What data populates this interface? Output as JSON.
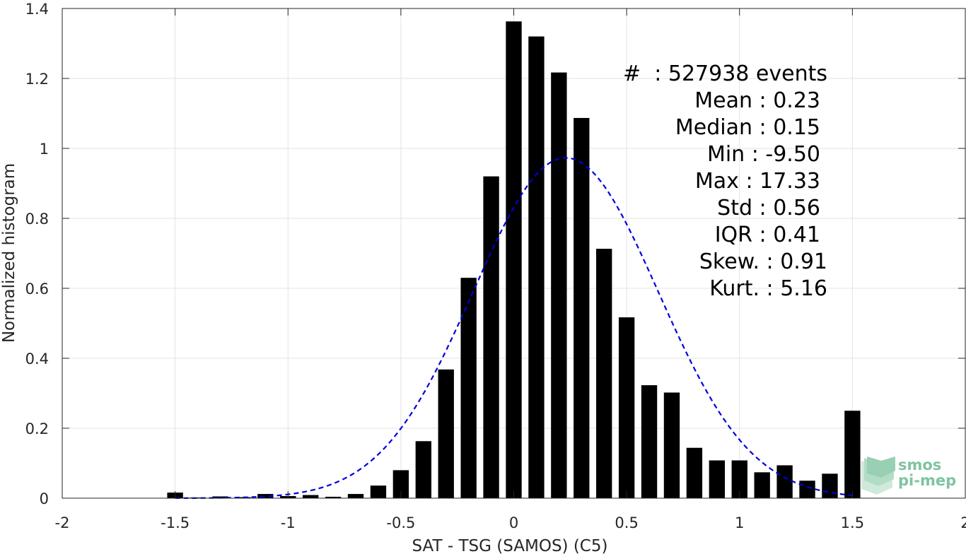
{
  "chart_data": {
    "type": "bar",
    "xlabel": "SAT - TSG (SAMOS) (C5)",
    "ylabel": "Normalized histogram",
    "xlim": [
      -2,
      2
    ],
    "ylim": [
      0,
      1.4
    ],
    "grid": true,
    "x_ticks": [
      -2,
      -1.5,
      -1,
      -0.5,
      0,
      0.5,
      1,
      1.5,
      2
    ],
    "x_tick_labels": [
      "-2",
      "-1.5",
      "-1",
      "-0.5",
      "0",
      "0.5",
      "1",
      "1.5",
      "2"
    ],
    "y_ticks": [
      0,
      0.2,
      0.4,
      0.6,
      0.8,
      1,
      1.2,
      1.4
    ],
    "y_tick_labels": [
      "0",
      "0.2",
      "0.4",
      "0.6",
      "0.8",
      "1",
      "1.2",
      "1.4"
    ],
    "bar_color": "#000000",
    "bar_width": 0.07,
    "x": [
      -1.5,
      -1.4,
      -1.3,
      -1.2,
      -1.1,
      -1.0,
      -0.9,
      -0.8,
      -0.7,
      -0.6,
      -0.5,
      -0.4,
      -0.3,
      -0.2,
      -0.1,
      0.0,
      0.1,
      0.2,
      0.3,
      0.4,
      0.5,
      0.6,
      0.7,
      0.8,
      0.9,
      1.0,
      1.1,
      1.2,
      1.3,
      1.4,
      1.5
    ],
    "values": [
      0.016,
      0.002,
      0.005,
      0.003,
      0.012,
      0.006,
      0.009,
      0.004,
      0.012,
      0.036,
      0.08,
      0.163,
      0.368,
      0.63,
      0.92,
      1.363,
      1.32,
      1.217,
      1.087,
      0.713,
      0.517,
      0.323,
      0.302,
      0.144,
      0.108,
      0.108,
      0.074,
      0.094,
      0.05,
      0.07,
      0.25
    ],
    "fit": {
      "type": "normal",
      "mean": 0.23,
      "std": 0.41,
      "x_range": [
        -1.5,
        1.5
      ],
      "color": "#0000dd",
      "style": "dashed"
    },
    "annotations": [
      "#  : 527938 events",
      "Mean : 0.23",
      "Median : 0.15",
      "Min : -9.50",
      "Max : 17.33",
      "Std : 0.56",
      "IQR : 0.41",
      "Skew. : 0.91",
      "Kurt. : 5.16"
    ]
  },
  "logo": {
    "line1": "smos",
    "line2": "pi-mep",
    "color": "#7fc4a0"
  }
}
